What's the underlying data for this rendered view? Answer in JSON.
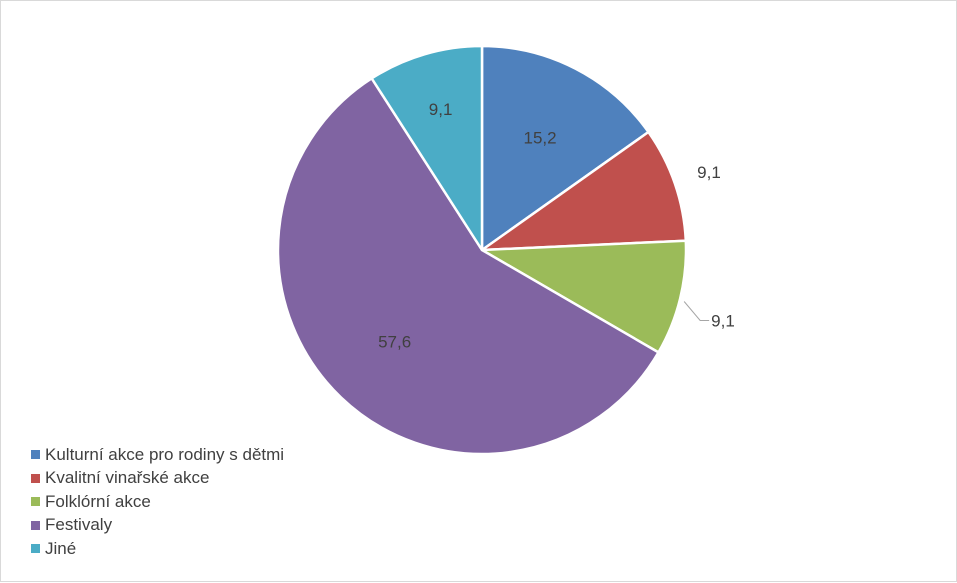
{
  "chart_data": {
    "type": "pie",
    "title": "",
    "categories": [
      "Kulturní akce pro rodiny s dětmi",
      "Kvalitní vinařské akce",
      "Folklórní akce",
      "Festivaly",
      "Jiné"
    ],
    "values": [
      15.2,
      9.1,
      9.1,
      57.6,
      9.1
    ],
    "data_labels": [
      "15,2",
      "9,1",
      "9,1",
      "57,6",
      "9,1"
    ],
    "colors": [
      "#4f81bd",
      "#c0504d",
      "#9bbb59",
      "#8064a2",
      "#4bacc6"
    ],
    "legend_placement": "bottom-left",
    "start_angle": "12 o'clock",
    "direction": "clockwise"
  }
}
